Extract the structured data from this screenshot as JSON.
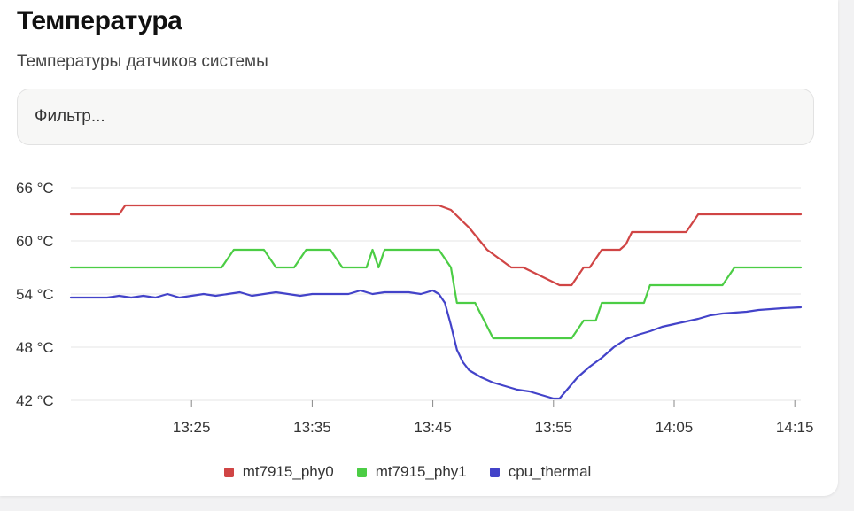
{
  "header": {
    "title": "Температура",
    "subtitle": "Температуры датчиков системы"
  },
  "filter": {
    "placeholder": "Фильтр..."
  },
  "chart_data": {
    "type": "line",
    "title": "",
    "xlabel": "",
    "ylabel": "",
    "unit": "°C",
    "grid": true,
    "legend_position": "bottom-center",
    "x_range": [
      "13:15:00",
      "14:15:30"
    ],
    "ylim": [
      42,
      66
    ],
    "y_ticks": [
      {
        "value": 66,
        "label": "66 °C"
      },
      {
        "value": 60,
        "label": "60 °C"
      },
      {
        "value": 54,
        "label": "54 °C"
      },
      {
        "value": 48,
        "label": "48 °C"
      },
      {
        "value": 42,
        "label": "42 °C"
      }
    ],
    "x_ticks": [
      {
        "value": "13:25",
        "label": "13:25"
      },
      {
        "value": "13:35",
        "label": "13:35"
      },
      {
        "value": "13:45",
        "label": "13:45"
      },
      {
        "value": "13:55",
        "label": "13:55"
      },
      {
        "value": "14:05",
        "label": "14:05"
      },
      {
        "value": "14:15",
        "label": "14:15"
      }
    ],
    "series": [
      {
        "name": "mt7915_phy0",
        "color": "#d04545",
        "x": [
          "13:15:00",
          "13:19:00",
          "13:19:30",
          "13:45:30",
          "13:46:30",
          "13:48:00",
          "13:49:30",
          "13:51:30",
          "13:52:30",
          "13:55:30",
          "13:56:30",
          "13:57:30",
          "13:58:00",
          "13:59:00",
          "14:00:30",
          "14:01:00",
          "14:01:30",
          "14:06:00",
          "14:07:00",
          "14:15:30"
        ],
        "y": [
          63,
          63,
          64,
          64,
          63.5,
          61.5,
          59,
          57,
          57,
          55,
          55,
          57,
          57,
          59,
          59,
          59.6,
          61,
          61,
          63,
          63
        ]
      },
      {
        "name": "mt7915_phy1",
        "color": "#4ccd45",
        "x": [
          "13:15:00",
          "13:27:30",
          "13:28:30",
          "13:31:00",
          "13:32:00",
          "13:33:30",
          "13:34:30",
          "13:36:30",
          "13:37:30",
          "13:39:30",
          "13:40:00",
          "13:40:30",
          "13:41:00",
          "13:42:00",
          "13:45:30",
          "13:46:30",
          "13:47:00",
          "13:48:30",
          "13:50:00",
          "13:56:30",
          "13:57:30",
          "13:58:30",
          "13:59:00",
          "14:00:00",
          "14:02:30",
          "14:03:00",
          "14:09:00",
          "14:10:00",
          "14:15:30"
        ],
        "y": [
          57,
          57,
          59,
          59,
          57,
          57,
          59,
          59,
          57,
          57,
          59,
          57,
          59,
          59,
          59,
          57,
          53,
          53,
          49,
          49,
          51,
          51,
          53,
          53,
          53,
          55,
          55,
          57,
          57
        ]
      },
      {
        "name": "cpu_thermal",
        "color": "#4343c9",
        "x": [
          "13:15:00",
          "13:18:00",
          "13:19:00",
          "13:20:00",
          "13:21:00",
          "13:22:00",
          "13:23:00",
          "13:24:00",
          "13:25:00",
          "13:26:00",
          "13:27:00",
          "13:28:00",
          "13:29:00",
          "13:30:00",
          "13:31:00",
          "13:32:00",
          "13:33:00",
          "13:34:00",
          "13:35:00",
          "13:36:00",
          "13:37:00",
          "13:38:00",
          "13:39:00",
          "13:40:00",
          "13:41:00",
          "13:42:00",
          "13:43:00",
          "13:44:00",
          "13:45:00",
          "13:45:30",
          "13:46:00",
          "13:46:30",
          "13:47:00",
          "13:47:30",
          "13:48:00",
          "13:49:00",
          "13:50:00",
          "13:51:00",
          "13:52:00",
          "13:53:00",
          "13:54:00",
          "13:55:00",
          "13:55:30",
          "13:56:00",
          "13:57:00",
          "13:58:00",
          "13:59:00",
          "14:00:00",
          "14:01:00",
          "14:02:00",
          "14:03:00",
          "14:04:00",
          "14:05:00",
          "14:06:00",
          "14:07:00",
          "14:08:00",
          "14:09:00",
          "14:10:00",
          "14:11:00",
          "14:12:00",
          "14:13:00",
          "14:14:00",
          "14:15:30"
        ],
        "y": [
          53.6,
          53.6,
          53.8,
          53.6,
          53.8,
          53.6,
          54.0,
          53.6,
          53.8,
          54.0,
          53.8,
          54.0,
          54.2,
          53.8,
          54.0,
          54.2,
          54.0,
          53.8,
          54.0,
          54.0,
          54.0,
          54.0,
          54.4,
          54.0,
          54.2,
          54.2,
          54.2,
          54.0,
          54.4,
          54.0,
          53.0,
          50.5,
          47.7,
          46.3,
          45.4,
          44.6,
          44.0,
          43.6,
          43.2,
          43.0,
          42.6,
          42.2,
          42.2,
          43.0,
          44.6,
          45.8,
          46.8,
          48.0,
          48.9,
          49.4,
          49.8,
          50.3,
          50.6,
          50.9,
          51.2,
          51.6,
          51.8,
          51.9,
          52.0,
          52.2,
          52.3,
          52.4,
          52.5
        ]
      }
    ]
  }
}
